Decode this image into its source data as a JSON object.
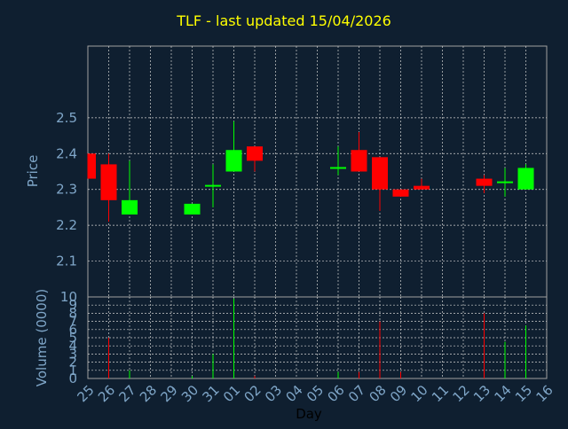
{
  "chart_data": {
    "type": "candlestick",
    "title": "TLF - last updated 15/04/2026",
    "xlabel": "Day",
    "price_panel": {
      "ylabel": "Price",
      "ylim": [
        2.0,
        2.7
      ],
      "yticks": [
        "2.1",
        "2.2",
        "2.3",
        "2.4",
        "2.5"
      ],
      "grid": true
    },
    "volume_panel": {
      "ylabel": "Volume (0000)",
      "ylim": [
        0,
        10
      ],
      "yticks": [
        "0",
        "1",
        "2",
        "3",
        "4",
        "5",
        "6",
        "7",
        "8",
        "9",
        "10"
      ],
      "grid": true
    },
    "x_ticks": [
      "25",
      "26",
      "27",
      "28",
      "29",
      "30",
      "31",
      "01",
      "02",
      "03",
      "04",
      "05",
      "06",
      "07",
      "08",
      "09",
      "10",
      "11",
      "12",
      "13",
      "14",
      "15",
      "16"
    ],
    "candles": [
      {
        "x": "25",
        "open": 2.4,
        "high": 2.4,
        "low": 2.33,
        "close": 2.33,
        "volume": 0
      },
      {
        "x": "26",
        "open": 2.37,
        "high": 2.4,
        "low": 2.21,
        "close": 2.27,
        "volume": 5
      },
      {
        "x": "27",
        "open": 2.23,
        "high": 2.38,
        "low": 2.23,
        "close": 2.27,
        "volume": 1
      },
      {
        "x": "30",
        "open": 2.23,
        "high": 2.26,
        "low": 2.23,
        "close": 2.26,
        "volume": 0.3
      },
      {
        "x": "31",
        "open": 2.31,
        "high": 2.37,
        "low": 2.25,
        "close": 2.31,
        "volume": 3
      },
      {
        "x": "01",
        "open": 2.35,
        "high": 2.49,
        "low": 2.35,
        "close": 2.41,
        "volume": 9.8
      },
      {
        "x": "02",
        "open": 2.42,
        "high": 2.42,
        "low": 2.35,
        "close": 2.38,
        "volume": 0.3
      },
      {
        "x": "06",
        "open": 2.36,
        "high": 2.42,
        "low": 2.34,
        "close": 2.36,
        "volume": 0.8
      },
      {
        "x": "07",
        "open": 2.41,
        "high": 2.46,
        "low": 2.35,
        "close": 2.35,
        "volume": 0.8
      },
      {
        "x": "08",
        "open": 2.39,
        "high": 2.39,
        "low": 2.24,
        "close": 2.3,
        "volume": 7
      },
      {
        "x": "09",
        "open": 2.3,
        "high": 2.3,
        "low": 2.28,
        "close": 2.28,
        "volume": 0.8
      },
      {
        "x": "10",
        "open": 2.31,
        "high": 2.33,
        "low": 2.3,
        "close": 2.3,
        "volume": 0
      },
      {
        "x": "13",
        "open": 2.33,
        "high": 2.34,
        "low": 2.29,
        "close": 2.31,
        "volume": 8
      },
      {
        "x": "14",
        "open": 2.32,
        "high": 2.36,
        "low": 2.28,
        "close": 2.32,
        "volume": 4.5
      },
      {
        "x": "15",
        "open": 2.3,
        "high": 2.37,
        "low": 2.3,
        "close": 2.36,
        "volume": 6.5
      }
    ],
    "colors": {
      "background": "#0f1f30",
      "plot_background": "#0f1f30",
      "axes": "#a0a0a0",
      "grid": "#d0d0d0",
      "up": "#00ff00",
      "down": "#ff0000",
      "title": "#ffff00",
      "labels": "#7fa6c8"
    }
  }
}
